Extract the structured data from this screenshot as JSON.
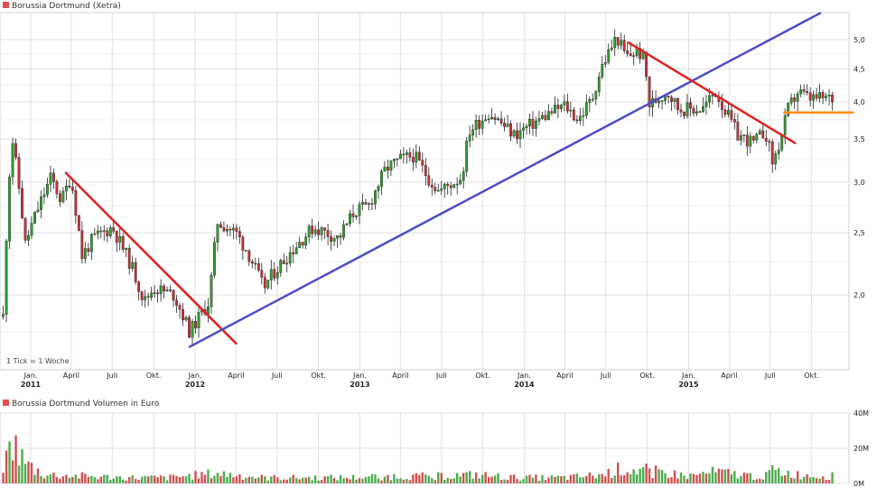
{
  "colors": {
    "up": "#2e9e2e",
    "down": "#c83232",
    "grid": "#e0e0e0",
    "support_line": "#4c4cc8",
    "resistance_line": "#e02020",
    "horizontal_line": "#ff8c1a",
    "legend_box": "#e05050"
  },
  "chart_data": [
    {
      "type": "candlestick",
      "title": "Borussia Dortmund (Xetra)",
      "y_scale": "log",
      "ylim": [
        1.55,
        5.5
      ],
      "y_ticks": [
        "5,0",
        "4,5",
        "4,0",
        "3,5",
        "3,0",
        "2,5",
        "2,0"
      ],
      "y_tick_values": [
        5.0,
        4.5,
        4.0,
        3.5,
        3.0,
        2.5,
        2.0
      ],
      "x_ticks": [
        {
          "label": "Jan.",
          "year": "2011",
          "date": "2011-01-01"
        },
        {
          "label": "April",
          "date": "2011-04-01"
        },
        {
          "label": "Juli",
          "date": "2011-07-01"
        },
        {
          "label": "Okt.",
          "date": "2011-10-01"
        },
        {
          "label": "Jan.",
          "year": "2012",
          "date": "2012-01-01"
        },
        {
          "label": "April",
          "date": "2012-04-01"
        },
        {
          "label": "Juli",
          "date": "2012-07-01"
        },
        {
          "label": "Okt.",
          "date": "2012-10-01"
        },
        {
          "label": "Jan.",
          "year": "2013",
          "date": "2013-01-01"
        },
        {
          "label": "April",
          "date": "2013-04-01"
        },
        {
          "label": "Juli",
          "date": "2013-07-01"
        },
        {
          "label": "Okt.",
          "date": "2013-10-01"
        },
        {
          "label": "Jan.",
          "year": "2014",
          "date": "2014-01-01"
        },
        {
          "label": "April",
          "date": "2014-04-01"
        },
        {
          "label": "Juli",
          "date": "2014-07-01"
        },
        {
          "label": "Okt.",
          "date": "2014-10-01"
        },
        {
          "label": "Jan.",
          "year": "2015",
          "date": "2015-01-01"
        },
        {
          "label": "April",
          "date": "2015-04-01"
        },
        {
          "label": "Juli",
          "date": "2015-07-01"
        },
        {
          "label": "Okt.",
          "date": "2015-10-01"
        }
      ],
      "scale_note": "1 Tick = 1 Woche",
      "price_path": [
        [
          "2010-11-01",
          1.85
        ],
        [
          "2010-11-20",
          3.55
        ],
        [
          "2010-12-20",
          2.4
        ],
        [
          "2011-01-10",
          2.65
        ],
        [
          "2011-02-15",
          3.05
        ],
        [
          "2011-03-10",
          2.8
        ],
        [
          "2011-03-31",
          3.05
        ],
        [
          "2011-04-25",
          2.3
        ],
        [
          "2011-05-20",
          2.45
        ],
        [
          "2011-07-01",
          2.55
        ],
        [
          "2011-08-15",
          2.2
        ],
        [
          "2011-09-10",
          1.95
        ],
        [
          "2011-10-01",
          2.05
        ],
        [
          "2011-11-15",
          2.0
        ],
        [
          "2011-12-20",
          1.75
        ],
        [
          "2012-02-01",
          1.95
        ],
        [
          "2012-02-20",
          2.6
        ],
        [
          "2012-04-01",
          2.5
        ],
        [
          "2012-05-01",
          2.3
        ],
        [
          "2012-06-01",
          2.05
        ],
        [
          "2012-06-20",
          2.15
        ],
        [
          "2012-08-15",
          2.4
        ],
        [
          "2012-09-20",
          2.55
        ],
        [
          "2012-11-15",
          2.45
        ],
        [
          "2012-12-20",
          2.7
        ],
        [
          "2013-01-20",
          2.75
        ],
        [
          "2013-02-28",
          3.15
        ],
        [
          "2013-04-01",
          3.25
        ],
        [
          "2013-05-01",
          3.3
        ],
        [
          "2013-06-01",
          3.05
        ],
        [
          "2013-06-25",
          2.9
        ],
        [
          "2013-08-15",
          3.05
        ],
        [
          "2013-09-01",
          3.6
        ],
        [
          "2013-10-15",
          3.85
        ],
        [
          "2013-12-10",
          3.55
        ],
        [
          "2014-01-20",
          3.7
        ],
        [
          "2014-03-01",
          3.85
        ],
        [
          "2014-04-01",
          3.95
        ],
        [
          "2014-05-01",
          3.75
        ],
        [
          "2014-06-01",
          4.05
        ],
        [
          "2014-06-20",
          4.5
        ],
        [
          "2014-07-25",
          5.05
        ],
        [
          "2014-08-15",
          4.7
        ],
        [
          "2014-09-10",
          4.8
        ],
        [
          "2014-09-25",
          4.65
        ],
        [
          "2014-10-05",
          3.95
        ],
        [
          "2014-11-15",
          4.15
        ],
        [
          "2014-12-10",
          3.9
        ],
        [
          "2015-01-15",
          3.9
        ],
        [
          "2015-02-01",
          3.9
        ],
        [
          "2015-03-01",
          4.15
        ],
        [
          "2015-03-25",
          3.85
        ],
        [
          "2015-04-20",
          3.55
        ],
        [
          "2015-05-25",
          3.45
        ],
        [
          "2015-06-20",
          3.6
        ],
        [
          "2015-07-07",
          3.2
        ],
        [
          "2015-07-25",
          3.5
        ],
        [
          "2015-08-10",
          3.9
        ],
        [
          "2015-09-01",
          4.15
        ],
        [
          "2015-09-25",
          4.05
        ],
        [
          "2015-10-20",
          4.05
        ],
        [
          "2015-11-20",
          4.05
        ]
      ],
      "trendlines": [
        {
          "color_key": "resistance_line",
          "from": [
            "2011-03-20",
            3.1
          ],
          "to": [
            "2012-04-01",
            1.68
          ]
        },
        {
          "color_key": "support_line",
          "from": [
            "2011-12-20",
            1.66
          ],
          "to": [
            "2015-10-20",
            5.5
          ]
        },
        {
          "color_key": "resistance_line",
          "from": [
            "2014-08-20",
            4.95
          ],
          "to": [
            "2015-08-25",
            3.45
          ]
        },
        {
          "color_key": "horizontal_line",
          "from": [
            "2015-08-01",
            3.85
          ],
          "to": [
            "2016-01-01",
            3.85
          ]
        }
      ]
    },
    {
      "type": "bar",
      "title": "Borussia Dortmund Volumen in Euro",
      "y_ticks": [
        "40M",
        "20M",
        "0M"
      ],
      "y_tick_values": [
        40,
        20,
        0
      ],
      "ylim": [
        0,
        40
      ],
      "volume_profile_m": [
        [
          "2010-11-01",
          10
        ],
        [
          "2010-11-20",
          30
        ],
        [
          "2010-12-20",
          14
        ],
        [
          "2011-02-01",
          6
        ],
        [
          "2011-05-01",
          5
        ],
        [
          "2011-08-01",
          4
        ],
        [
          "2011-11-01",
          4
        ],
        [
          "2012-02-20",
          7
        ],
        [
          "2012-06-01",
          4
        ],
        [
          "2012-12-01",
          4
        ],
        [
          "2013-03-01",
          5
        ],
        [
          "2013-06-01",
          5
        ],
        [
          "2013-09-15",
          6
        ],
        [
          "2013-12-15",
          4
        ],
        [
          "2014-04-01",
          4
        ],
        [
          "2014-06-25",
          6
        ],
        [
          "2014-08-01",
          10
        ],
        [
          "2014-10-05",
          9
        ],
        [
          "2015-01-01",
          5
        ],
        [
          "2015-03-01",
          8
        ],
        [
          "2015-06-01",
          5
        ],
        [
          "2015-07-10",
          9
        ],
        [
          "2015-09-01",
          6
        ],
        [
          "2015-11-20",
          5
        ]
      ]
    }
  ]
}
